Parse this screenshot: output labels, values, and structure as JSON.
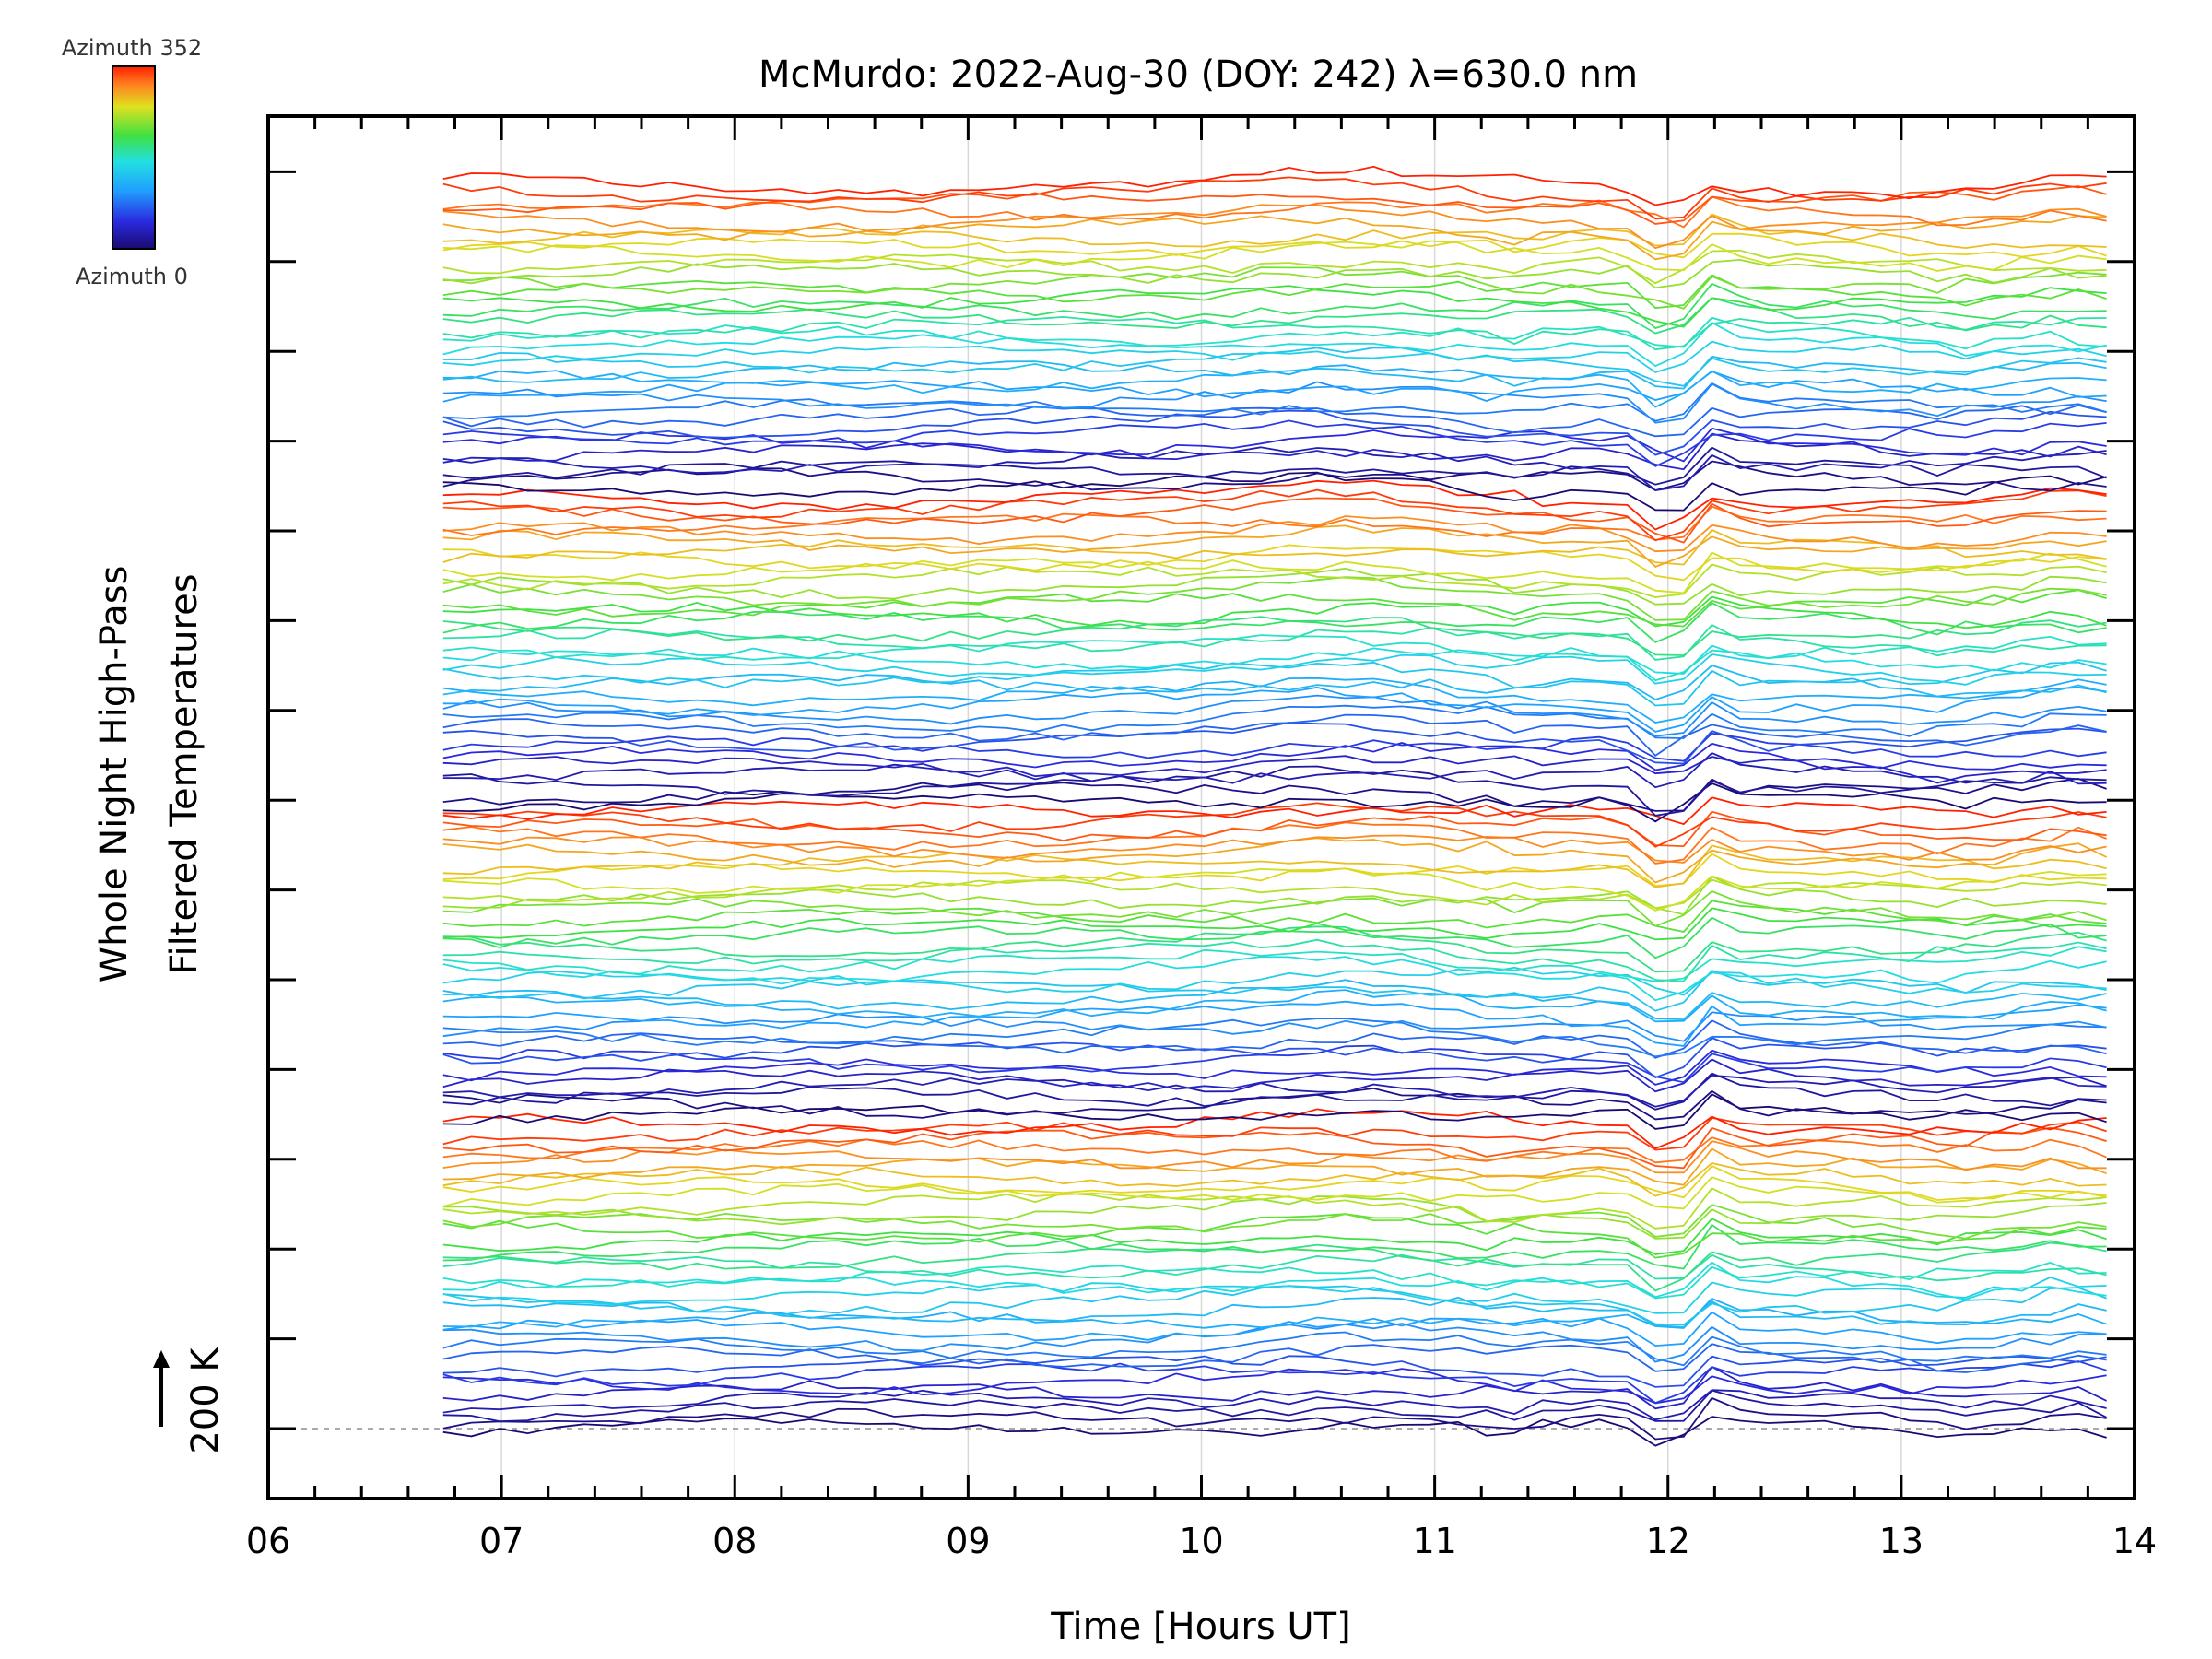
{
  "chart_data": {
    "type": "line",
    "title": "McMurdo: 2022-Aug-30 (DOY: 242) λ=630.0 nm",
    "xlabel": "Time [Hours UT]",
    "ylabel_line1": "Whole Night High-Pass",
    "ylabel_line2": "Filtered Temperatures",
    "scale_bar_label": "200 K",
    "xlim": [
      6,
      14
    ],
    "x_tick_labels": [
      "06",
      "07",
      "08",
      "09",
      "10",
      "11",
      "12",
      "13",
      "14"
    ],
    "x_range_data": [
      6.75,
      13.88
    ],
    "series_count": 140,
    "grid": true,
    "colorbar": {
      "top_label": "Azimuth 352",
      "bottom_label": "Azimuth 0",
      "colormap": "rainbow",
      "range": [
        0,
        352
      ]
    },
    "colors": {
      "low": "#1a0a70",
      "mid": "#22e0e0",
      "high": "#ff2000"
    }
  }
}
